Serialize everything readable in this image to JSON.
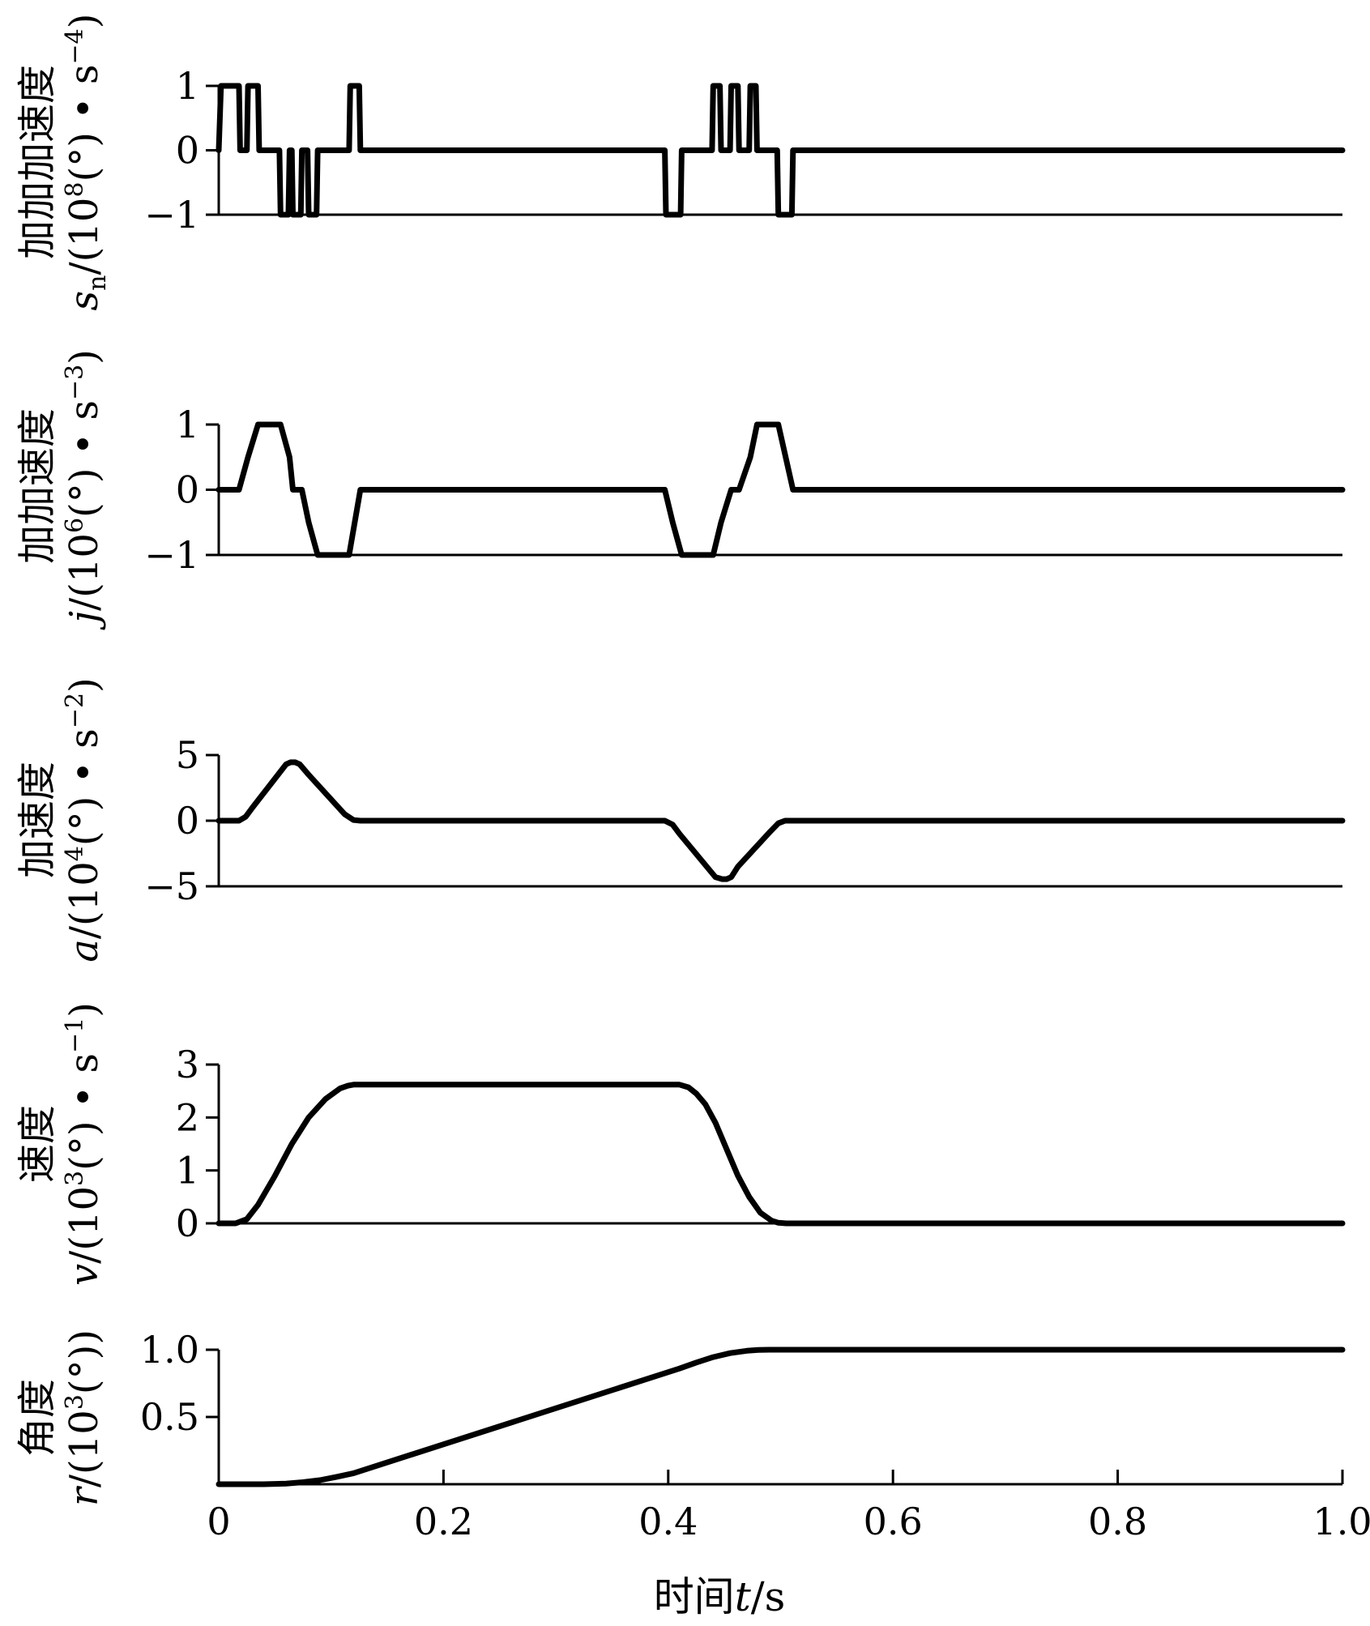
{
  "chart_data": {
    "x_axis": {
      "label_cn": "时间",
      "label_var": "t",
      "label_unit": "/s",
      "xlim": [
        0,
        1.0
      ],
      "ticks": [
        "0",
        "0.2",
        "0.4",
        "0.6",
        "0.8",
        "1.0"
      ],
      "tick_values": [
        0,
        0.2,
        0.4,
        0.6,
        0.8,
        1.0
      ]
    },
    "panels": [
      {
        "type": "line",
        "id": "snap",
        "ylabel_cn": "加加加速度",
        "ylabel_var": "s",
        "ylabel_sub": "n",
        "ylabel_pre": "/(10",
        "ylabel_exp": "8",
        "ylabel_mid": "(°) • s",
        "ylabel_exp2": "−4",
        "ylabel_post": ")",
        "ylim": [
          -1,
          1
        ],
        "yticks": [
          "1",
          "0",
          "−1"
        ],
        "ytick_values": [
          1,
          0,
          -1
        ],
        "baseline": -1,
        "x": [
          0,
          0.002,
          0.018,
          0.019,
          0.025,
          0.026,
          0.035,
          0.036,
          0.037,
          0.054,
          0.055,
          0.062,
          0.063,
          0.065,
          0.066,
          0.073,
          0.074,
          0.079,
          0.08,
          0.087,
          0.088,
          0.116,
          0.117,
          0.125,
          0.126,
          0.397,
          0.398,
          0.411,
          0.412,
          0.439,
          0.44,
          0.446,
          0.447,
          0.455,
          0.456,
          0.462,
          0.463,
          0.472,
          0.473,
          0.478,
          0.479,
          0.497,
          0.498,
          0.51,
          0.511,
          1.0
        ],
        "values": [
          0,
          1,
          1,
          0,
          0,
          1,
          1,
          0,
          0,
          0,
          -1,
          -1,
          0,
          0,
          -1,
          -1,
          0,
          0,
          -1,
          -1,
          0,
          0,
          1,
          1,
          0,
          0,
          -1,
          -1,
          0,
          0,
          1,
          1,
          0,
          0,
          1,
          1,
          0,
          0,
          1,
          1,
          0,
          0,
          -1,
          -1,
          0,
          0
        ]
      },
      {
        "type": "line",
        "id": "jerk",
        "ylabel_cn": "加加速度",
        "ylabel_var": "j",
        "ylabel_sub": "",
        "ylabel_pre": "/(10",
        "ylabel_exp": "6",
        "ylabel_mid": "(°) • s",
        "ylabel_exp2": "−3",
        "ylabel_post": ")",
        "ylim": [
          -1,
          1
        ],
        "yticks": [
          "1",
          "0",
          "−1"
        ],
        "ytick_values": [
          1,
          0,
          -1
        ],
        "baseline": -1,
        "x": [
          0,
          0.018,
          0.026,
          0.035,
          0.055,
          0.063,
          0.066,
          0.074,
          0.08,
          0.088,
          0.116,
          0.126,
          0.397,
          0.404,
          0.412,
          0.44,
          0.447,
          0.456,
          0.463,
          0.473,
          0.479,
          0.498,
          0.511,
          1.0
        ],
        "values": [
          0,
          0,
          0.5,
          1,
          1,
          0.5,
          0,
          0,
          -0.5,
          -1,
          -1,
          0,
          0,
          -0.5,
          -1,
          -1,
          -0.5,
          0,
          0,
          0.5,
          1,
          1,
          0,
          0
        ]
      },
      {
        "type": "line",
        "id": "acceleration",
        "ylabel_cn": "加速度",
        "ylabel_var": "a",
        "ylabel_sub": "",
        "ylabel_pre": "/(10",
        "ylabel_exp": "4",
        "ylabel_mid": "(°) • s",
        "ylabel_exp2": "−2",
        "ylabel_post": ")",
        "ylim": [
          -5,
          5
        ],
        "yticks": [
          "5",
          "0",
          "−5"
        ],
        "ytick_values": [
          5,
          0,
          -5
        ],
        "baseline": -5,
        "x": [
          0,
          0.018,
          0.024,
          0.03,
          0.06,
          0.064,
          0.068,
          0.072,
          0.08,
          0.112,
          0.12,
          0.126,
          0.397,
          0.404,
          0.41,
          0.442,
          0.448,
          0.452,
          0.456,
          0.462,
          0.49,
          0.498,
          0.504,
          1.0
        ],
        "values": [
          0,
          0,
          0.3,
          1.0,
          4.3,
          4.45,
          4.45,
          4.3,
          3.5,
          0.5,
          0.05,
          0,
          0,
          -0.3,
          -1.0,
          -4.3,
          -4.45,
          -4.45,
          -4.3,
          -3.5,
          -0.9,
          -0.2,
          0,
          0
        ]
      },
      {
        "type": "line",
        "id": "velocity",
        "ylabel_cn": "速度",
        "ylabel_var": "v",
        "ylabel_sub": "",
        "ylabel_pre": "/(10",
        "ylabel_exp": "3",
        "ylabel_mid": "(°) • s",
        "ylabel_exp2": "−1",
        "ylabel_post": ")",
        "ylim": [
          0,
          3
        ],
        "yticks": [
          "3",
          "2",
          "1",
          "0"
        ],
        "ytick_values": [
          3,
          2,
          1,
          0
        ],
        "baseline": 0,
        "x": [
          0,
          0.015,
          0.025,
          0.035,
          0.05,
          0.065,
          0.08,
          0.095,
          0.108,
          0.115,
          0.12,
          0.125,
          0.41,
          0.418,
          0.425,
          0.433,
          0.442,
          0.452,
          0.462,
          0.472,
          0.482,
          0.492,
          0.498,
          0.505,
          1.0
        ],
        "values": [
          0,
          0,
          0.08,
          0.35,
          0.9,
          1.5,
          2.0,
          2.35,
          2.55,
          2.6,
          2.62,
          2.62,
          2.62,
          2.57,
          2.45,
          2.25,
          1.9,
          1.4,
          0.9,
          0.5,
          0.2,
          0.05,
          0.01,
          0,
          0
        ]
      },
      {
        "type": "line",
        "id": "angle",
        "ylabel_cn": "角度",
        "ylabel_var": "r",
        "ylabel_sub": "",
        "ylabel_pre": "/(10",
        "ylabel_exp": "3",
        "ylabel_mid": "(°))",
        "ylabel_exp2": "",
        "ylabel_post": "",
        "ylim": [
          0,
          1.0
        ],
        "yticks": [
          "1.0",
          "0.5"
        ],
        "ytick_values": [
          1.0,
          0.5
        ],
        "baseline": 0,
        "x": [
          0,
          0.04,
          0.06,
          0.075,
          0.09,
          0.105,
          0.12,
          0.41,
          0.425,
          0.44,
          0.455,
          0.47,
          0.48,
          0.49,
          1.0
        ],
        "values": [
          0,
          0,
          0.005,
          0.015,
          0.03,
          0.055,
          0.082,
          0.86,
          0.905,
          0.945,
          0.975,
          0.992,
          0.998,
          1.0,
          1.0
        ]
      }
    ]
  }
}
